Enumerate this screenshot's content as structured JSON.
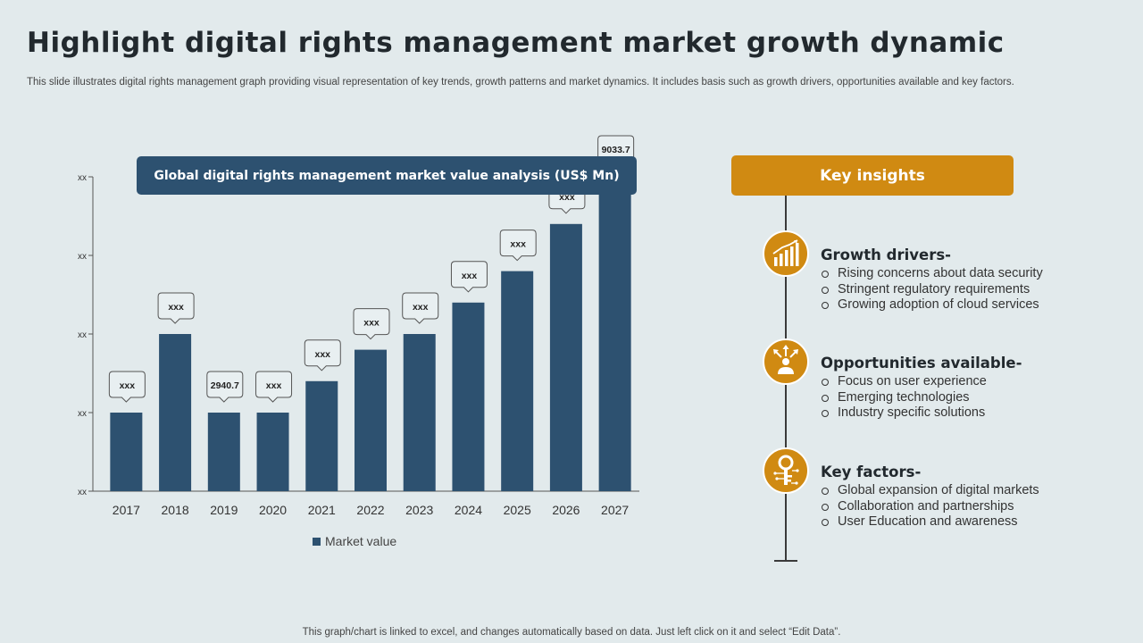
{
  "slide": {
    "title": "Highlight digital rights management market growth dynamic",
    "subtitle": "This slide illustrates digital rights management graph providing visual representation of key trends, growth patterns and market dynamics. It includes basis such as growth drivers, opportunities available and key factors.",
    "footer": "This graph/chart is linked to excel,  and changes automatically based on data. Just left click on it and select “Edit Data”."
  },
  "chart_header": "Global digital rights management market value analysis (US$ Mn)",
  "chart_data": {
    "type": "bar",
    "title": "Global digital rights management market value analysis (US$ Mn)",
    "categories": [
      "2017",
      "2018",
      "2019",
      "2020",
      "2021",
      "2022",
      "2023",
      "2024",
      "2025",
      "2026",
      "2027"
    ],
    "series": [
      {
        "name": "Market value",
        "values": [
          1,
          2,
          1,
          1,
          1.4,
          1.8,
          2,
          2.4,
          2.8,
          3.4,
          4
        ],
        "labels": [
          "xxx",
          "xxx",
          "2940.7",
          "xxx",
          "xxx",
          "xxx",
          "xxx",
          "xxx",
          "xxx",
          "xxx",
          "9033.7"
        ]
      }
    ],
    "y_tick_labels": [
      "xx",
      "xx",
      "xx",
      "xx",
      "xx"
    ],
    "ylim": [
      0,
      4
    ],
    "legend_position": "bottom",
    "color": "#2d5170"
  },
  "insights": {
    "header": "Key insights",
    "items": [
      {
        "title": "Growth drivers-",
        "icon": "growth-chart-icon",
        "bullets": [
          "Rising concerns about data security",
          "Stringent regulatory requirements",
          "Growing adoption of cloud services"
        ]
      },
      {
        "title": "Opportunities available-",
        "icon": "person-arrows-icon",
        "bullets": [
          "Focus on user experience",
          "Emerging technologies",
          "Industry specific solutions"
        ]
      },
      {
        "title": "Key factors-",
        "icon": "key-circuit-icon",
        "bullets": [
          "Global expansion of digital markets",
          "Collaboration and partnerships",
          "User Education and awareness"
        ]
      }
    ],
    "accent": "#d08a12"
  }
}
